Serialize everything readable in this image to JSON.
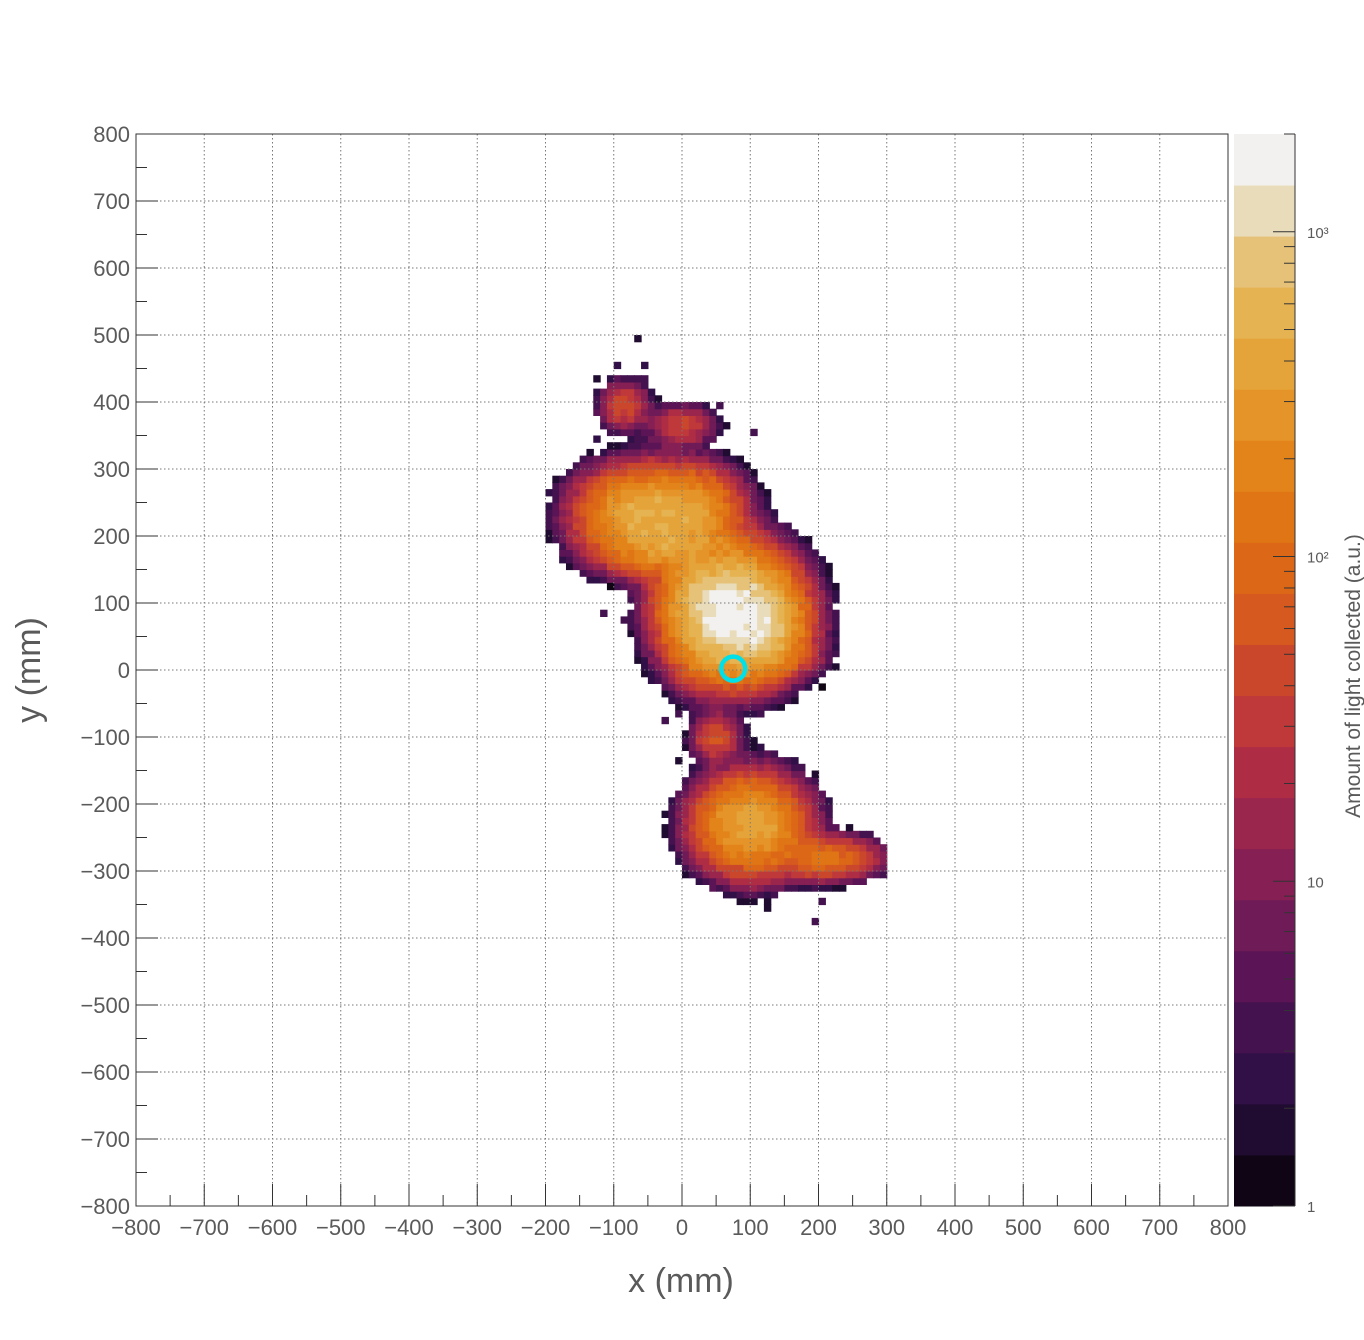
{
  "chart_data": {
    "type": "heatmap",
    "xlabel": "x (mm)",
    "ylabel": "y (mm)",
    "colorbar_label": "Amount of light collected (a.u.)",
    "xlim": [
      -800,
      800
    ],
    "ylim": [
      -800,
      800
    ],
    "x_ticks": [
      "−800",
      "−700",
      "−600",
      "−500",
      "−400",
      "−300",
      "−200",
      "−100",
      "0",
      "100",
      "200",
      "300",
      "400",
      "500",
      "600",
      "700",
      "800"
    ],
    "y_ticks": [
      "800",
      "700",
      "600",
      "500",
      "400",
      "300",
      "200",
      "100",
      "0",
      "−100",
      "−200",
      "−300",
      "−400",
      "−500",
      "−600",
      "−700",
      "−800"
    ],
    "x_tick_values": [
      -800,
      -700,
      -600,
      -500,
      -400,
      -300,
      -200,
      -100,
      0,
      100,
      200,
      300,
      400,
      500,
      600,
      700,
      800
    ],
    "y_tick_values": [
      800,
      700,
      600,
      500,
      400,
      300,
      200,
      100,
      0,
      -100,
      -200,
      -300,
      -400,
      -500,
      -600,
      -700,
      -800
    ],
    "colorbar": {
      "scale": "log",
      "min": 1,
      "max": 2000,
      "labels": [
        {
          "value": 1,
          "text": "1"
        },
        {
          "value": 10,
          "text": "10"
        },
        {
          "value": 100,
          "text": "10²"
        },
        {
          "value": 1000,
          "text": "10³"
        }
      ],
      "colors": [
        "#0f0514",
        "#1f0c30",
        "#310f47",
        "#44124f",
        "#5b1455",
        "#6f1b57",
        "#851f54",
        "#9b264d",
        "#ae2d44",
        "#c0393a",
        "#cb472c",
        "#d6591f",
        "#dc6717",
        "#df7514",
        "#e28419",
        "#e49428",
        "#e5a43a",
        "#e6b352",
        "#e5c277",
        "#e9dcba",
        "#f3f1ef"
      ]
    },
    "grid": true,
    "bin_size_mm": 10,
    "blobs": [
      {
        "x": 75,
        "y": 85,
        "sx": 42,
        "sy": 42,
        "peak": 1700
      },
      {
        "x": 115,
        "y": 60,
        "sx": 30,
        "sy": 30,
        "peak": 420
      },
      {
        "x": 30,
        "y": 110,
        "sx": 30,
        "sy": 30,
        "peak": 220
      },
      {
        "x": -55,
        "y": 235,
        "sx": 45,
        "sy": 32,
        "peak": 430
      },
      {
        "x": 15,
        "y": 240,
        "sx": 35,
        "sy": 30,
        "peak": 260
      },
      {
        "x": -15,
        "y": 185,
        "sx": 50,
        "sy": 22,
        "peak": 280
      },
      {
        "x": -85,
        "y": 395,
        "sx": 18,
        "sy": 18,
        "peak": 55
      },
      {
        "x": 0,
        "y": 365,
        "sx": 25,
        "sy": 16,
        "peak": 40
      },
      {
        "x": 50,
        "y": -100,
        "sx": 18,
        "sy": 18,
        "peak": 60
      },
      {
        "x": 100,
        "y": -230,
        "sx": 38,
        "sy": 35,
        "peak": 420
      },
      {
        "x": 210,
        "y": -280,
        "sx": 38,
        "sy": 16,
        "peak": 130
      },
      {
        "x": 30,
        "y": 30,
        "sx": 25,
        "sy": 30,
        "peak": 60
      },
      {
        "x": 140,
        "y": 20,
        "sx": 35,
        "sy": 15,
        "peak": 40
      }
    ],
    "sparse_bins": [
      [
        -70,
        490
      ],
      [
        -95,
        455
      ],
      [
        -55,
        455
      ],
      [
        -125,
        435
      ],
      [
        -125,
        415
      ],
      [
        -55,
        435
      ],
      [
        -15,
        385
      ],
      [
        55,
        395
      ],
      [
        105,
        355
      ],
      [
        -125,
        345
      ],
      [
        -85,
        335
      ],
      [
        -45,
        305
      ],
      [
        -25,
        305
      ],
      [
        15,
        305
      ],
      [
        55,
        305
      ],
      [
        -105,
        285
      ],
      [
        75,
        275
      ],
      [
        95,
        255
      ],
      [
        115,
        225
      ],
      [
        -115,
        195
      ],
      [
        -135,
        165
      ],
      [
        -155,
        195
      ],
      [
        -165,
        185
      ],
      [
        -145,
        175
      ],
      [
        -155,
        155
      ],
      [
        -95,
        145
      ],
      [
        -105,
        125
      ],
      [
        -75,
        125
      ],
      [
        -65,
        105
      ],
      [
        -115,
        85
      ],
      [
        -85,
        75
      ],
      [
        -65,
        55
      ],
      [
        -45,
        25
      ],
      [
        -15,
        25
      ],
      [
        -45,
        5
      ],
      [
        185,
        5
      ],
      [
        205,
        5
      ],
      [
        185,
        -5
      ],
      [
        205,
        -25
      ],
      [
        85,
        -35
      ],
      [
        -25,
        -75
      ],
      [
        -5,
        -65
      ],
      [
        25,
        -75
      ],
      [
        45,
        -65
      ],
      [
        115,
        -65
      ],
      [
        105,
        -125
      ],
      [
        -5,
        -135
      ],
      [
        15,
        -145
      ],
      [
        65,
        -155
      ],
      [
        85,
        -155
      ],
      [
        125,
        -155
      ],
      [
        135,
        -175
      ],
      [
        95,
        -185
      ],
      [
        65,
        -205
      ],
      [
        35,
        -225
      ],
      [
        165,
        -205
      ],
      [
        185,
        -205
      ],
      [
        45,
        -285
      ],
      [
        55,
        -305
      ],
      [
        95,
        -325
      ],
      [
        135,
        -305
      ],
      [
        165,
        -305
      ],
      [
        195,
        -325
      ],
      [
        235,
        -305
      ],
      [
        255,
        -305
      ],
      [
        205,
        -345
      ],
      [
        125,
        -355
      ],
      [
        195,
        -375
      ],
      [
        35,
        -305
      ]
    ],
    "marker": {
      "x": 75,
      "y": 2,
      "shape": "circle",
      "color": "#00e0e8"
    }
  }
}
